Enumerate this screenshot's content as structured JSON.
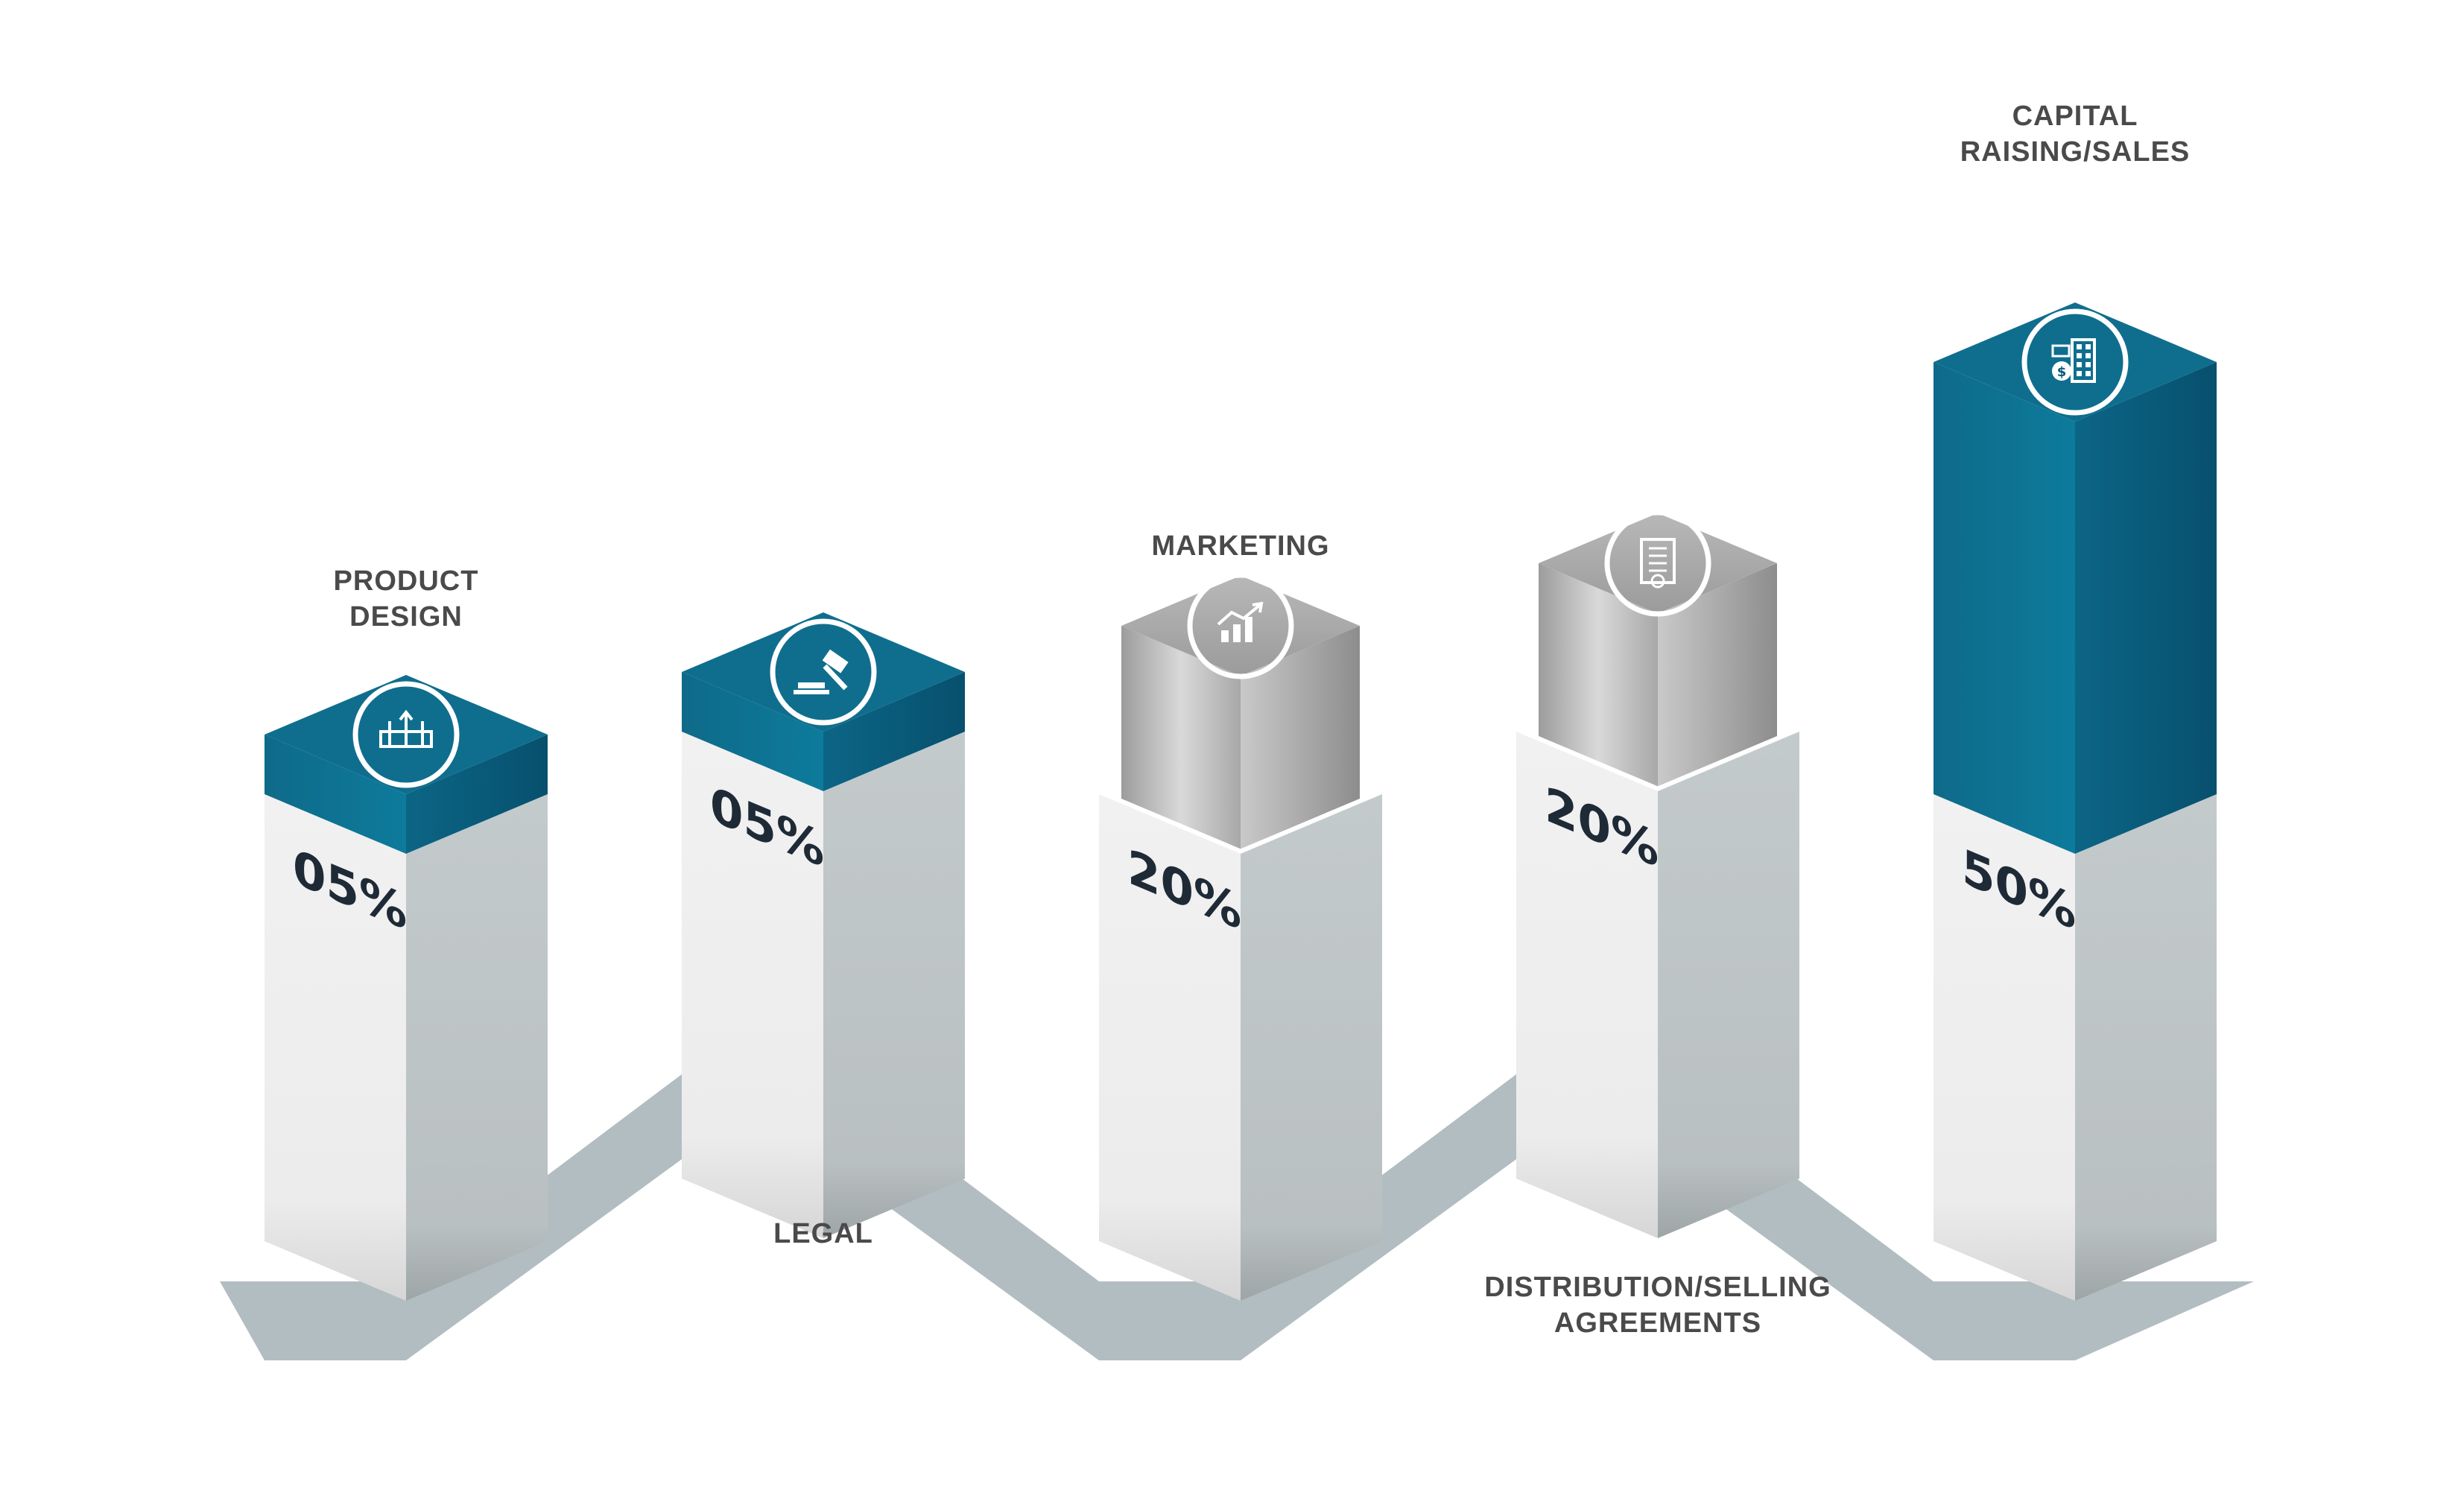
{
  "chart_data": {
    "type": "bar",
    "title": "",
    "xlabel": "",
    "ylabel": "",
    "ylim": [
      0,
      50
    ],
    "grid": false,
    "legend": "none",
    "categories": [
      {
        "lines": [
          "PRODUCT",
          "DESIGN"
        ],
        "value": 5,
        "value_label": "05%",
        "color": "teal",
        "icon": "product-design-icon",
        "label_position": "top"
      },
      {
        "lines": [
          "LEGAL"
        ],
        "value": 5,
        "value_label": "05%",
        "color": "teal",
        "icon": "gavel-icon",
        "label_position": "bottom"
      },
      {
        "lines": [
          "MARKETING"
        ],
        "value": 20,
        "value_label": "20%",
        "color": "gray",
        "icon": "growth-chart-icon",
        "label_position": "top"
      },
      {
        "lines": [
          "DISTRIBUTION/SELLING",
          "AGREEMENTS"
        ],
        "value": 20,
        "value_label": "20%",
        "color": "gray",
        "icon": "contract-document-icon",
        "label_position": "bottom"
      },
      {
        "lines": [
          "CAPITAL",
          "RAISING/SALES"
        ],
        "value": 50,
        "value_label": "50%",
        "color": "teal",
        "icon": "money-building-icon",
        "label_position": "top"
      }
    ],
    "colors": {
      "teal_top": "#0f6e8e",
      "teal_front": "#0e7090",
      "teal_side": "#0a5878",
      "gray_top": "#a9a9a9",
      "gray_front": "#bdbdbd",
      "gray_side": "#9a9a9a",
      "pedestal_front": "#eeeeee",
      "pedestal_side": "#bec6c8",
      "floor": "#aeb9bf"
    }
  }
}
